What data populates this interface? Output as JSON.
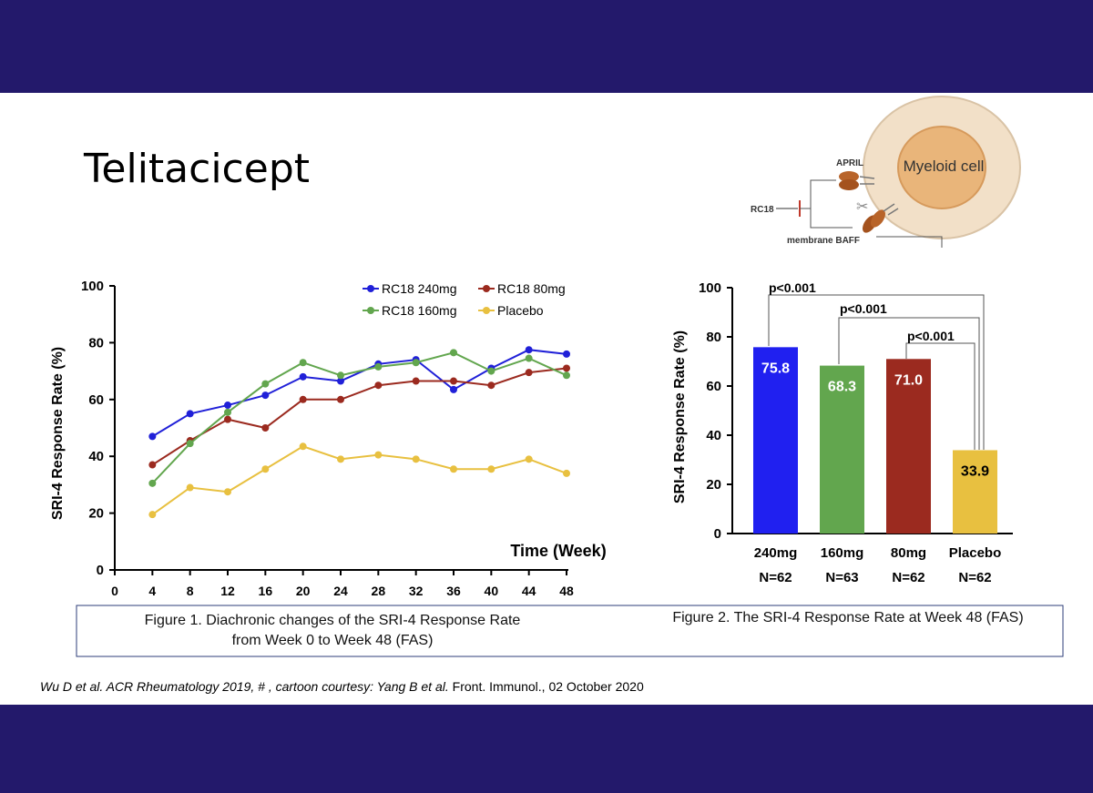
{
  "slide": {
    "title": "Telitacicept",
    "citation_italic_1": "Wu D et al.  ACR Rheumatology 2019, # , cartoon courtesy: Yang B et al.",
    "citation_plain": " Front. Immunol., 02 October 2020"
  },
  "cartoon": {
    "cell_label": "Myeloid cell",
    "april_label": "APRIL",
    "rc18_label": "RC18",
    "baff_label": "membrane BAFF"
  },
  "colors": {
    "rc18_240": "#2020d8",
    "rc18_80": "#9b2a1f",
    "rc18_160": "#62a64e",
    "placebo": "#e8c040",
    "background": "#23196b"
  },
  "chart_data": [
    {
      "type": "line",
      "x": [
        4,
        8,
        12,
        16,
        20,
        24,
        28,
        32,
        36,
        40,
        44,
        48
      ],
      "xticks": [
        "0",
        "4",
        "8",
        "12",
        "16",
        "20",
        "24",
        "28",
        "32",
        "36",
        "40",
        "44",
        "48"
      ],
      "xlim": [
        0,
        48
      ],
      "ylim": [
        0,
        100
      ],
      "yticks": [
        "0",
        "20",
        "40",
        "60",
        "80",
        "100"
      ],
      "xlabel": "Time (Week)",
      "ylabel": "SRI-4 Response Rate (%)",
      "caption_line1": "Figure 1. Diachronic changes of the SRI-4 Response Rate",
      "caption_line2": "from Week 0 to Week 48 (FAS)",
      "legend_position": "top-right",
      "series": [
        {
          "name": "RC18 240mg",
          "color": "#2020d8",
          "values": [
            47,
            55,
            58,
            61.5,
            68,
            66.5,
            72.5,
            74,
            63.5,
            71,
            77.5,
            76
          ]
        },
        {
          "name": "RC18 80mg",
          "color": "#9b2a1f",
          "values": [
            37,
            45.5,
            53,
            50,
            60,
            60,
            65,
            66.5,
            66.5,
            65,
            69.5,
            71
          ]
        },
        {
          "name": "RC18 160mg",
          "color": "#62a64e",
          "values": [
            30.5,
            44.5,
            55.5,
            65.5,
            73,
            68.5,
            71.5,
            73,
            76.5,
            70,
            74.5,
            68.5
          ]
        },
        {
          "name": "Placebo",
          "color": "#e8c040",
          "values": [
            19.5,
            29,
            27.5,
            35.5,
            43.5,
            39,
            40.5,
            39,
            35.5,
            35.5,
            39,
            34
          ]
        }
      ]
    },
    {
      "type": "bar",
      "categories": [
        "240mg",
        "160mg",
        "80mg",
        "Placebo"
      ],
      "n_labels": [
        "N=62",
        "N=63",
        "N=62",
        "N=62"
      ],
      "values": [
        75.8,
        68.3,
        71.0,
        33.9
      ],
      "value_labels": [
        "75.8",
        "68.3",
        "71.0",
        "33.9"
      ],
      "colors": [
        "#2020f0",
        "#62a64e",
        "#9b2a1f",
        "#e8c040"
      ],
      "ylim": [
        0,
        100
      ],
      "yticks": [
        "0",
        "20",
        "40",
        "60",
        "80",
        "100"
      ],
      "ylabel": "SRI-4 Response Rate (%)",
      "pvalues": [
        "p<0.001",
        "p<0.001",
        "p<0.001"
      ],
      "caption": "Figure 2. The SRI-4 Response Rate at Week 48 (FAS)"
    }
  ]
}
